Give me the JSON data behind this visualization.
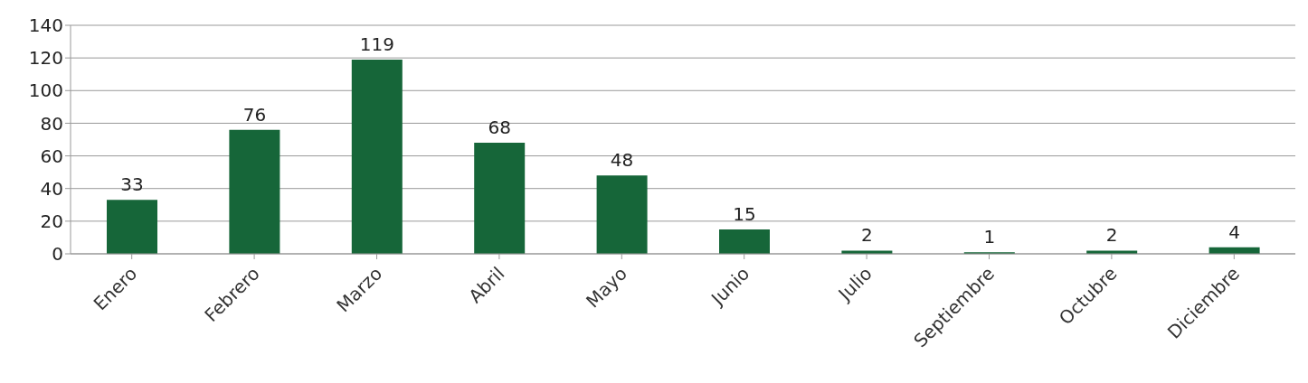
{
  "chart_data": {
    "type": "bar",
    "categories": [
      "Enero",
      "Febrero",
      "Marzo",
      "Abril",
      "Mayo",
      "Junio",
      "Julio",
      "Septiembre",
      "Octubre",
      "Diciembre"
    ],
    "values": [
      33,
      76,
      119,
      68,
      48,
      15,
      2,
      1,
      2,
      4
    ],
    "color": "#166639",
    "ylim": [
      0,
      140
    ],
    "yticks": [
      0,
      20,
      40,
      60,
      80,
      100,
      120,
      140
    ],
    "grid": "y",
    "data_labels": true
  }
}
